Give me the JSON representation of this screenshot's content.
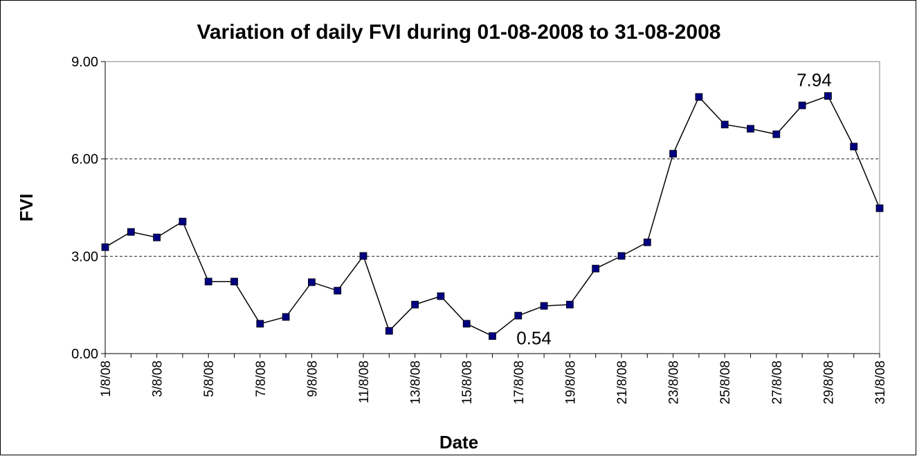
{
  "chart_data": {
    "type": "line",
    "title": "Variation of daily FVI during 01-08-2008 to 31-08-2008",
    "x_label": "Date",
    "y_label": "FVI",
    "categories": [
      "1/8/08",
      null,
      "3/8/08",
      null,
      "5/8/08",
      null,
      "7/8/08",
      null,
      "9/8/08",
      null,
      "11/8/08",
      null,
      "13/8/08",
      null,
      "15/8/08",
      null,
      "17/8/08",
      null,
      "19/8/08",
      null,
      "21/8/08",
      null,
      "23/8/08",
      null,
      "25/8/08",
      null,
      "27/8/08",
      null,
      "29/8/08",
      null,
      "31/8/08"
    ],
    "series": [
      {
        "name": "FVI",
        "color": "#000080",
        "values": [
          3.28,
          3.75,
          3.58,
          4.07,
          2.22,
          2.22,
          0.92,
          1.13,
          2.2,
          1.94,
          3.01,
          0.7,
          1.51,
          1.77,
          0.92,
          0.54,
          1.17,
          1.47,
          1.51,
          2.62,
          3.01,
          3.43,
          6.16,
          7.91,
          7.06,
          6.93,
          6.76,
          7.65,
          7.94,
          6.38,
          4.48
        ],
        "value_labels": [
          null,
          null,
          null,
          null,
          null,
          null,
          null,
          null,
          null,
          null,
          null,
          null,
          null,
          null,
          null,
          "0.54",
          null,
          null,
          null,
          null,
          null,
          null,
          null,
          null,
          null,
          null,
          null,
          null,
          "7.94",
          null,
          null
        ]
      }
    ],
    "ylim": [
      0,
      9
    ],
    "yticks": [
      {
        "value": 0,
        "label": "0.00"
      },
      {
        "value": 3,
        "label": "3.00"
      },
      {
        "value": 6,
        "label": "6.00"
      },
      {
        "value": 9,
        "label": "9.00"
      }
    ],
    "grid": true
  }
}
